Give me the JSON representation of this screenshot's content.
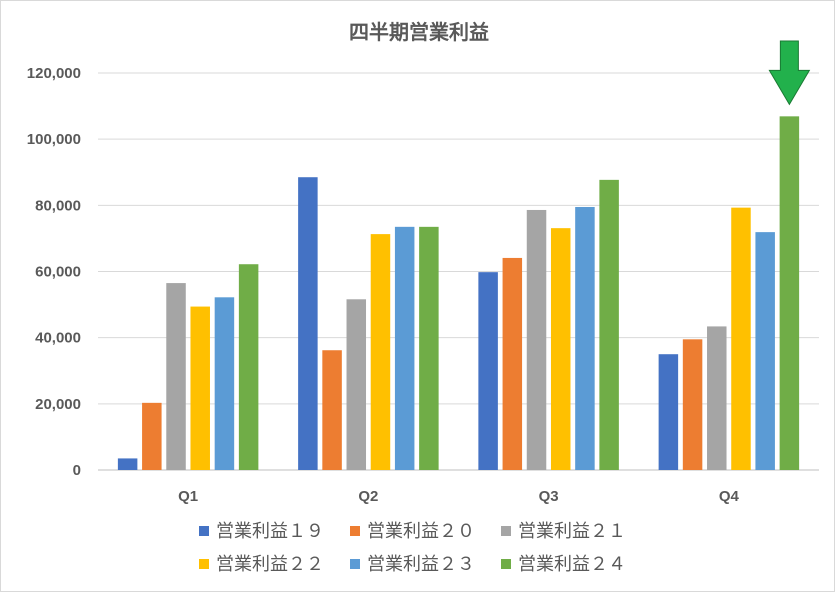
{
  "chart_data": {
    "type": "bar",
    "title": "四半期営業利益",
    "xlabel": "",
    "ylabel": "",
    "categories": [
      "Q1",
      "Q2",
      "Q3",
      "Q4"
    ],
    "ylim": [
      0,
      120000
    ],
    "yticks": [
      "0",
      "20,000",
      "40,000",
      "60,000",
      "80,000",
      "100,000",
      "120,000"
    ],
    "grid": true,
    "legend_position": "bottom",
    "series": [
      {
        "name": "営業利益１９",
        "color": "#4472C4",
        "values": [
          3500,
          88500,
          59800,
          35000
        ]
      },
      {
        "name": "営業利益２０",
        "color": "#ED7D31",
        "values": [
          20300,
          36200,
          64100,
          39500
        ]
      },
      {
        "name": "営業利益２１",
        "color": "#A5A5A5",
        "values": [
          56500,
          51600,
          78600,
          43400
        ]
      },
      {
        "name": "営業利益２２",
        "color": "#FFC000",
        "values": [
          49400,
          71300,
          73100,
          79300
        ]
      },
      {
        "name": "営業利益２３",
        "color": "#5B9BD5",
        "values": [
          52200,
          73500,
          79500,
          71900
        ]
      },
      {
        "name": "営業利益２４",
        "color": "#70AD47",
        "values": [
          62200,
          73500,
          87700,
          106900
        ]
      }
    ],
    "annotation": {
      "type": "arrow-down",
      "color": "#22B14C",
      "target": "Q4 営業利益２４"
    }
  }
}
